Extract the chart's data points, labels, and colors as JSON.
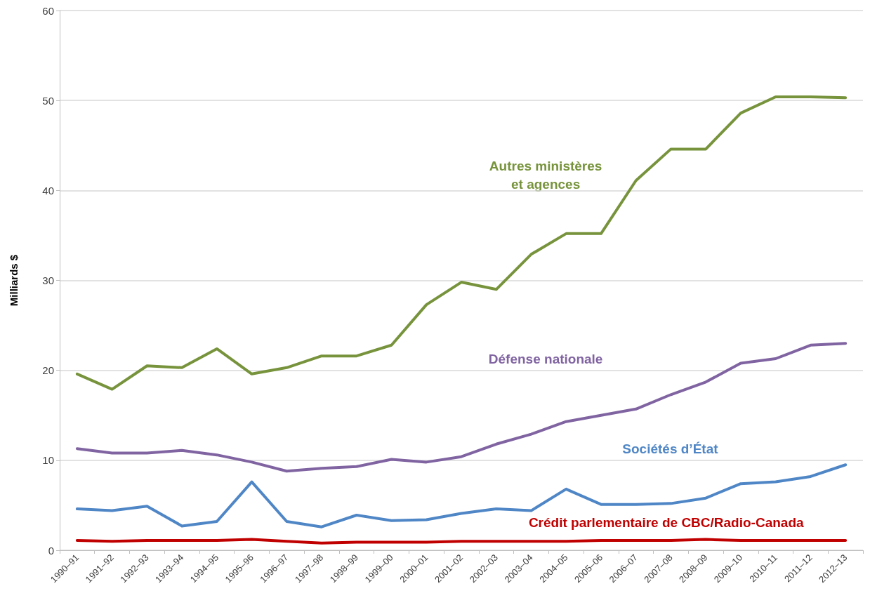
{
  "chart_data": {
    "type": "line",
    "ylabel": "Milliards $",
    "categories": [
      "1990–91",
      "1991–92",
      "1992–93",
      "1993–94",
      "1994–95",
      "1995–96",
      "1996–97",
      "1997–98",
      "1998–99",
      "1999–00",
      "2000–01",
      "2001–02",
      "2002–03",
      "2003–04",
      "2004–05",
      "2005–06",
      "2006–07",
      "2007–08",
      "2008–09",
      "2009–10",
      "2010–11",
      "2011–12",
      "2012–13"
    ],
    "series": [
      {
        "name": "Autres ministères\net agences",
        "color": "#77933c",
        "values": [
          19.6,
          17.9,
          20.5,
          20.3,
          22.4,
          19.6,
          20.3,
          21.6,
          21.6,
          22.8,
          27.3,
          29.8,
          29.0,
          32.9,
          35.2,
          35.2,
          41.1,
          44.6,
          44.6,
          48.6,
          50.4,
          50.4,
          50.3
        ]
      },
      {
        "name": "Défense nationale",
        "color": "#8064a2",
        "values": [
          11.3,
          10.8,
          10.8,
          11.1,
          10.6,
          9.8,
          8.8,
          9.1,
          9.3,
          10.1,
          9.8,
          10.4,
          11.8,
          12.9,
          14.3,
          15.0,
          15.7,
          17.3,
          18.7,
          20.8,
          21.3,
          22.8,
          23.0
        ]
      },
      {
        "name": "Sociétés d’État",
        "color": "#4f86c6",
        "values": [
          4.6,
          4.4,
          4.9,
          2.7,
          3.2,
          7.6,
          3.2,
          2.6,
          3.9,
          3.3,
          3.4,
          4.1,
          4.6,
          4.4,
          6.8,
          5.1,
          5.1,
          5.2,
          5.8,
          7.4,
          7.6,
          8.2,
          9.5
        ]
      },
      {
        "name": "Crédit parlementaire de CBC/Radio-Canada",
        "color": "#c00000",
        "values": [
          1.1,
          1.0,
          1.1,
          1.1,
          1.1,
          1.2,
          1.0,
          0.8,
          0.9,
          0.9,
          0.9,
          1.0,
          1.0,
          1.0,
          1.0,
          1.1,
          1.1,
          1.1,
          1.2,
          1.1,
          1.1,
          1.1,
          1.1
        ]
      }
    ],
    "ylim": [
      0,
      60
    ],
    "yticks": [
      0,
      10,
      20,
      30,
      40,
      50,
      60
    ],
    "grid": "y",
    "marker": "none",
    "line_style": "solid"
  }
}
